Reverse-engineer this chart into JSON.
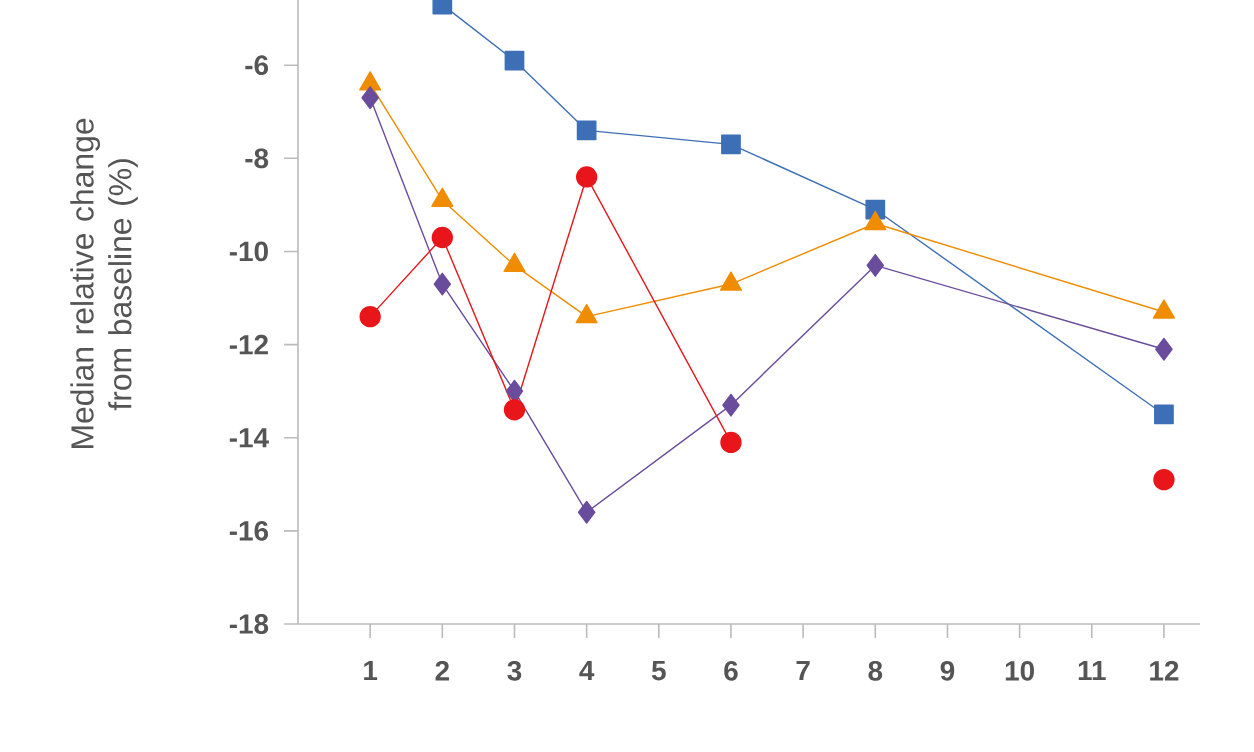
{
  "chart_data": {
    "type": "line",
    "ylabel": "Median relative change from baseline (%)",
    "x": [
      1,
      2,
      3,
      4,
      6,
      8,
      12
    ],
    "series": [
      {
        "color": "#3d6fb6",
        "marker": "square",
        "values": [
          null,
          -4.7,
          -5.9,
          -7.4,
          -7.7,
          -9.1,
          -13.5
        ]
      },
      {
        "color": "#f08c00",
        "marker": "triangle",
        "values": [
          -6.4,
          -8.9,
          -10.3,
          -11.4,
          -10.7,
          -9.4,
          -11.3
        ]
      },
      {
        "color": "#6a4c9c",
        "marker": "diamond",
        "values": [
          -6.7,
          -10.7,
          -13.0,
          -15.6,
          -13.3,
          -10.3,
          -12.1
        ]
      },
      {
        "color": "#e8161b",
        "marker": "circle",
        "values": [
          -11.4,
          -9.7,
          -13.4,
          -8.4,
          -14.1,
          null,
          -14.9
        ]
      }
    ],
    "xlim": [
      0,
      12.5
    ],
    "ylim": [
      -18,
      -4.6
    ],
    "xticks": [
      1,
      2,
      3,
      4,
      5,
      6,
      7,
      8,
      9,
      10,
      11,
      12
    ],
    "yticks": [
      -18,
      -16,
      -14,
      -12,
      -10,
      -8,
      -6
    ]
  }
}
